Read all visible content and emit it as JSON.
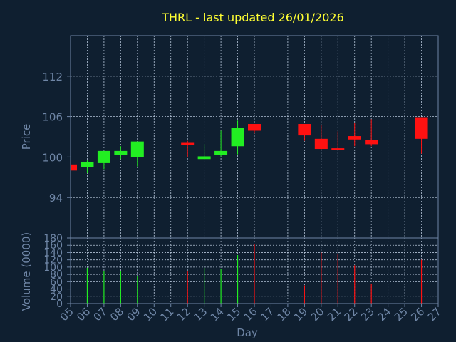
{
  "chart_data": {
    "title": "THRL - last updated 26/01/2026",
    "xlabel": "Day",
    "colors": {
      "background": "#0f1f30",
      "axis": "#6f86a6",
      "grid": "#b4c3d7",
      "title": "#ffff33",
      "up": "#22ee22",
      "down": "#ff1111"
    },
    "price": {
      "type": "candlestick",
      "ylabel": "Price",
      "ylim": [
        88,
        118
      ],
      "yticks": [
        94,
        100,
        106,
        112
      ],
      "candles": [
        {
          "day": 5,
          "open": 98.9,
          "close": 98.0,
          "high": 98.9,
          "low": 98.0
        },
        {
          "day": 6,
          "open": 98.5,
          "close": 99.3,
          "high": 99.5,
          "low": 97.6
        },
        {
          "day": 7,
          "open": 99.1,
          "close": 100.9,
          "high": 100.9,
          "low": 98.2
        },
        {
          "day": 8,
          "open": 100.3,
          "close": 100.9,
          "high": 101.6,
          "low": 99.7
        },
        {
          "day": 9,
          "open": 100.0,
          "close": 102.3,
          "high": 102.3,
          "low": 98.6
        },
        {
          "day": 12,
          "open": 102.1,
          "close": 101.8,
          "high": 102.4,
          "low": 100.0
        },
        {
          "day": 13,
          "open": 99.7,
          "close": 100.1,
          "high": 101.9,
          "low": 99.7
        },
        {
          "day": 14,
          "open": 100.3,
          "close": 100.9,
          "high": 103.9,
          "low": 100.1
        },
        {
          "day": 15,
          "open": 101.6,
          "close": 104.3,
          "high": 105.4,
          "low": 100.4
        },
        {
          "day": 16,
          "open": 104.9,
          "close": 103.9,
          "high": 104.9,
          "low": 103.5
        },
        {
          "day": 19,
          "open": 104.9,
          "close": 103.2,
          "high": 104.9,
          "low": 102.4
        },
        {
          "day": 20,
          "open": 102.7,
          "close": 101.2,
          "high": 104.8,
          "low": 101.1
        },
        {
          "day": 21,
          "open": 101.3,
          "close": 101.1,
          "high": 103.8,
          "low": 101.0
        },
        {
          "day": 22,
          "open": 103.1,
          "close": 102.6,
          "high": 105.1,
          "low": 101.6
        },
        {
          "day": 23,
          "open": 102.5,
          "close": 101.9,
          "high": 105.6,
          "low": 101.6
        },
        {
          "day": 26,
          "open": 105.9,
          "close": 102.7,
          "high": 105.9,
          "low": 100.5
        }
      ]
    },
    "volume": {
      "type": "bar",
      "ylabel": "Volume (0000)",
      "ylim": [
        0,
        180
      ],
      "yticks": [
        0,
        20,
        40,
        60,
        80,
        100,
        120,
        140,
        160,
        180
      ],
      "bars": [
        {
          "day": 6,
          "value": 98,
          "direction": "up"
        },
        {
          "day": 7,
          "value": 88,
          "direction": "up"
        },
        {
          "day": 8,
          "value": 88,
          "direction": "up"
        },
        {
          "day": 9,
          "value": 75,
          "direction": "up"
        },
        {
          "day": 12,
          "value": 88,
          "direction": "down"
        },
        {
          "day": 13,
          "value": 98,
          "direction": "up"
        },
        {
          "day": 14,
          "value": 95,
          "direction": "up"
        },
        {
          "day": 15,
          "value": 133,
          "direction": "up"
        },
        {
          "day": 16,
          "value": 163,
          "direction": "down"
        },
        {
          "day": 19,
          "value": 50,
          "direction": "down"
        },
        {
          "day": 20,
          "value": 140,
          "direction": "down"
        },
        {
          "day": 21,
          "value": 135,
          "direction": "down"
        },
        {
          "day": 22,
          "value": 105,
          "direction": "down"
        },
        {
          "day": 23,
          "value": 53,
          "direction": "down"
        },
        {
          "day": 26,
          "value": 120,
          "direction": "down"
        }
      ]
    },
    "x_ticks": [
      "05",
      "06",
      "07",
      "08",
      "09",
      "10",
      "11",
      "12",
      "13",
      "14",
      "15",
      "16",
      "17",
      "18",
      "19",
      "20",
      "21",
      "22",
      "23",
      "24",
      "25",
      "26",
      "27"
    ],
    "x_tick_start_day": 5
  }
}
